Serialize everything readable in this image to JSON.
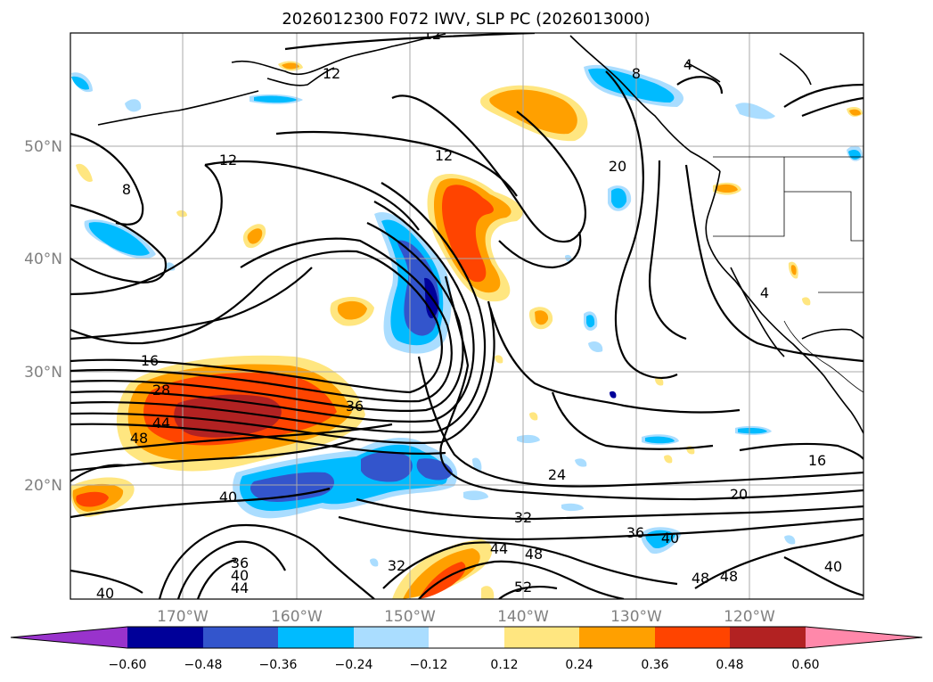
{
  "title": "2026012300 F072 IWV, SLP PC (2026013000)",
  "lat_labels": [
    "50°N",
    "40°N",
    "30°N",
    "20°N"
  ],
  "lon_labels": [
    "170°W",
    "160°W",
    "150°W",
    "140°W",
    "130°W",
    "120°W"
  ],
  "contour_labels": [
    "12",
    "12",
    "8",
    "12",
    "12",
    "20",
    "4",
    "8",
    "4",
    "16",
    "28",
    "44",
    "48",
    "36",
    "40",
    "24",
    "20",
    "16",
    "32",
    "36",
    "40",
    "44",
    "48",
    "32",
    "36",
    "40",
    "44",
    "40",
    "52",
    "48",
    "48",
    "40"
  ],
  "colorbar": {
    "ticks": [
      "−0.60",
      "−0.48",
      "−0.36",
      "−0.24",
      "−0.12",
      "0.12",
      "0.24",
      "0.36",
      "0.48",
      "0.60"
    ],
    "colors": [
      "#9933cc",
      "#000099",
      "#3355cc",
      "#00bbff",
      "#aaddff",
      "#ffffff",
      "#ffe680",
      "#ffa000",
      "#ff4400",
      "#b22222",
      "#ff88aa"
    ]
  }
}
